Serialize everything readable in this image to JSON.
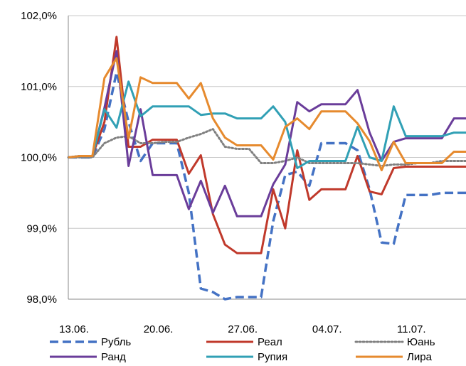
{
  "chart_data": {
    "type": "line",
    "title": "",
    "xlabel": "",
    "ylabel": "",
    "ylim": [
      98.0,
      102.0
    ],
    "y_ticks": [
      "98,0%",
      "99,0%",
      "100,0%",
      "101,0%",
      "102,0%"
    ],
    "x_ticks": [
      "13.06.",
      "20.06.",
      "27.06.",
      "04.07.",
      "11.07."
    ],
    "x_tick_positions": [
      0,
      7,
      14,
      21,
      28
    ],
    "grid": "horizontal",
    "legend": "bottom",
    "x": [
      0,
      1,
      2,
      3,
      4,
      5,
      6,
      7,
      8,
      9,
      10,
      11,
      12,
      13,
      14,
      15,
      16,
      17,
      18,
      19,
      20,
      21,
      22,
      23,
      24,
      25,
      26,
      27,
      28,
      29,
      30,
      31,
      32,
      33
    ],
    "series": [
      {
        "name": "Рубль",
        "color": "#4472C4",
        "style": "dashed",
        "values": [
          100.0,
          100.0,
          100.0,
          100.4,
          101.2,
          100.5,
          99.95,
          100.2,
          100.2,
          100.2,
          99.5,
          98.15,
          98.1,
          98.0,
          98.03,
          98.03,
          98.03,
          99.1,
          99.75,
          99.8,
          99.6,
          100.2,
          100.2,
          100.2,
          100.1,
          99.55,
          98.8,
          98.78,
          99.47,
          99.47,
          99.47,
          99.5,
          99.5,
          99.5
        ]
      },
      {
        "name": "Реал",
        "color": "#C0392B",
        "style": "solid",
        "values": [
          100.0,
          100.02,
          100.02,
          100.5,
          101.7,
          100.15,
          100.15,
          100.25,
          100.25,
          100.25,
          99.77,
          100.03,
          99.2,
          98.77,
          98.65,
          98.65,
          98.65,
          99.55,
          99.0,
          100.1,
          99.4,
          99.55,
          99.55,
          99.55,
          100.02,
          99.52,
          99.48,
          99.85,
          99.87,
          99.87,
          99.87,
          99.87,
          99.87,
          99.87
        ]
      },
      {
        "name": "Юань",
        "color": "#808080",
        "style": "dotted",
        "values": [
          100.0,
          100.0,
          100.0,
          100.2,
          100.28,
          100.3,
          100.2,
          100.2,
          100.22,
          100.22,
          100.28,
          100.33,
          100.4,
          100.15,
          100.12,
          100.12,
          99.92,
          99.92,
          99.95,
          100.0,
          99.92,
          99.92,
          99.92,
          99.92,
          99.92,
          99.9,
          99.88,
          99.9,
          99.9,
          99.92,
          99.92,
          99.95,
          99.95,
          99.95
        ]
      },
      {
        "name": "Ранд",
        "color": "#6A3D9A",
        "style": "solid",
        "values": [
          100.0,
          100.02,
          100.02,
          100.7,
          101.5,
          99.88,
          100.68,
          99.75,
          99.75,
          99.75,
          99.27,
          99.67,
          99.22,
          99.6,
          99.17,
          99.17,
          99.17,
          99.62,
          99.9,
          100.78,
          100.65,
          100.75,
          100.75,
          100.75,
          100.95,
          100.35,
          99.95,
          100.22,
          100.27,
          100.27,
          100.27,
          100.27,
          100.55,
          100.55
        ]
      },
      {
        "name": "Рупия",
        "color": "#31A0B5",
        "style": "solid",
        "values": [
          100.0,
          100.02,
          100.02,
          100.68,
          100.42,
          101.07,
          100.58,
          100.72,
          100.72,
          100.72,
          100.72,
          100.6,
          100.62,
          100.62,
          100.55,
          100.55,
          100.55,
          100.72,
          100.5,
          99.85,
          99.95,
          99.95,
          99.95,
          99.95,
          100.43,
          100.0,
          99.95,
          100.72,
          100.3,
          100.3,
          100.3,
          100.3,
          100.35,
          100.35
        ]
      },
      {
        "name": "Лира",
        "color": "#E68A2E",
        "style": "solid",
        "values": [
          100.0,
          100.02,
          100.02,
          101.12,
          101.4,
          100.27,
          101.13,
          101.05,
          101.05,
          101.05,
          100.83,
          101.05,
          100.55,
          100.28,
          100.17,
          100.17,
          100.17,
          99.97,
          100.43,
          100.55,
          100.4,
          100.65,
          100.65,
          100.65,
          100.48,
          100.23,
          99.82,
          100.22,
          99.92,
          99.92,
          99.92,
          99.92,
          100.08,
          100.08
        ]
      }
    ]
  }
}
